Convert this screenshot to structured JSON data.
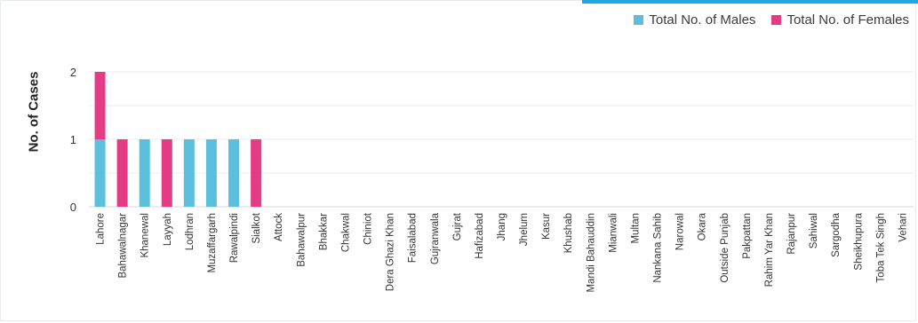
{
  "chart_data": {
    "type": "bar",
    "stacked": true,
    "title": "",
    "xlabel": "",
    "ylabel": "No. of Cases",
    "ylim": [
      0,
      2
    ],
    "yticks": [
      0,
      1,
      2
    ],
    "grid": true,
    "legend_position": "top-right",
    "categories": [
      "Lahore",
      "Bahawalnagar",
      "Khanewal",
      "Layyah",
      "Lodhran",
      "Muzaffargarh",
      "Rawalpindi",
      "Sialkot",
      "Attock",
      "Bahawalpur",
      "Bhakkar",
      "Chakwal",
      "Chiniot",
      "Dera Ghazi Khan",
      "Faisalabad",
      "Gujranwala",
      "Gujrat",
      "Hafizabad",
      "Jhang",
      "Jhelum",
      "Kasur",
      "Khushab",
      "Mandi Bahauddin",
      "Mianwali",
      "Multan",
      "Nankana Sahib",
      "Narowal",
      "Okara",
      "Outside Punjab",
      "Pakpattan",
      "Rahim Yar Khan",
      "Rajanpur",
      "Sahiwal",
      "Sargodha",
      "Sheikhupura",
      "Toba Tek Singh",
      "Vehari"
    ],
    "series": [
      {
        "name": "Total No. of Males",
        "color": "#5bc0de",
        "values": [
          1,
          0,
          1,
          0,
          1,
          1,
          1,
          0,
          0,
          0,
          0,
          0,
          0,
          0,
          0,
          0,
          0,
          0,
          0,
          0,
          0,
          0,
          0,
          0,
          0,
          0,
          0,
          0,
          0,
          0,
          0,
          0,
          0,
          0,
          0,
          0,
          0
        ]
      },
      {
        "name": "Total No. of Females",
        "color": "#e33b84",
        "values": [
          1,
          1,
          0,
          1,
          0,
          0,
          0,
          1,
          0,
          0,
          0,
          0,
          0,
          0,
          0,
          0,
          0,
          0,
          0,
          0,
          0,
          0,
          0,
          0,
          0,
          0,
          0,
          0,
          0,
          0,
          0,
          0,
          0,
          0,
          0,
          0,
          0
        ]
      }
    ]
  }
}
